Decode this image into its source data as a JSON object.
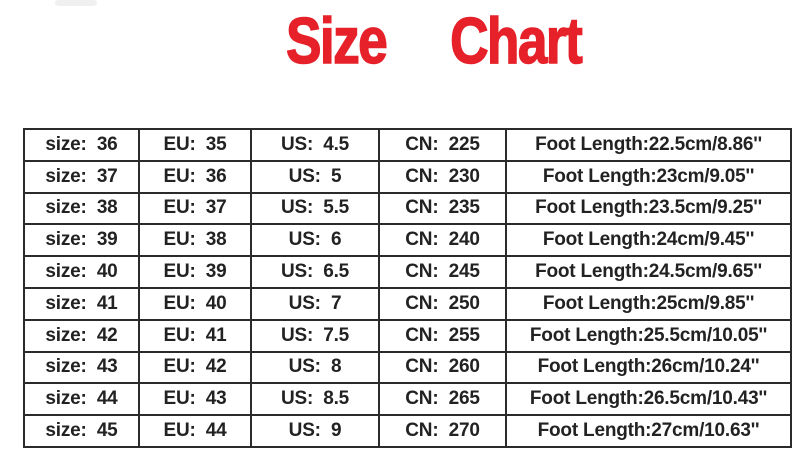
{
  "title": {
    "word1": "Size",
    "word2": "Chart",
    "color": "#e62129"
  },
  "table": {
    "rows": [
      [
        "size:  36",
        "EU:  35",
        "US:  4.5",
        "CN:  225",
        "Foot Length:22.5cm/8.86''"
      ],
      [
        "size:  37",
        "EU:  36",
        "US:  5",
        "CN:  230",
        "Foot Length:23cm/9.05''"
      ],
      [
        "size:  38",
        "EU:  37",
        "US:  5.5",
        "CN:  235",
        "Foot Length:23.5cm/9.25''"
      ],
      [
        "size:  39",
        "EU:  38",
        "US:  6",
        "CN:  240",
        "Foot Length:24cm/9.45''"
      ],
      [
        "size:  40",
        "EU:  39",
        "US:  6.5",
        "CN:  245",
        "Foot Length:24.5cm/9.65''"
      ],
      [
        "size:  41",
        "EU:  40",
        "US:  7",
        "CN:  250",
        "Foot Length:25cm/9.85''"
      ],
      [
        "size:  42",
        "EU:  41",
        "US:  7.5",
        "CN:  255",
        "Foot Length:25.5cm/10.05''"
      ],
      [
        "size:  43",
        "EU:  42",
        "US:  8",
        "CN:  260",
        "Foot Length:26cm/10.24''"
      ],
      [
        "size:  44",
        "EU:  43",
        "US:  8.5",
        "CN:  265",
        "Foot Length:26.5cm/10.43''"
      ],
      [
        "size:  45",
        "EU:  44",
        "US:  9",
        "CN:  270",
        "Foot Length:27cm/10.63''"
      ]
    ]
  }
}
